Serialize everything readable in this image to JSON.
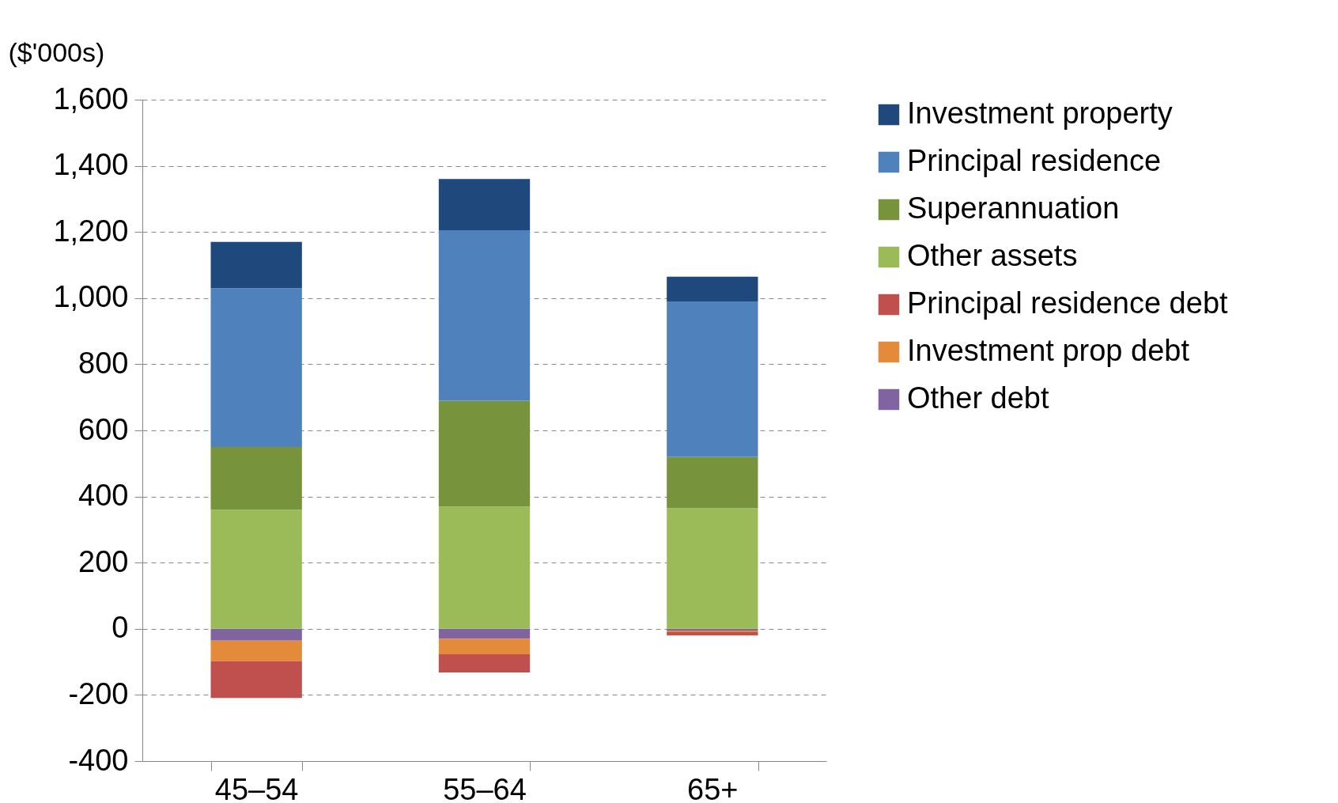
{
  "chart_data": {
    "type": "bar",
    "stacked": true,
    "ylabel": "($'000s)",
    "categories": [
      "45–54",
      "55–64",
      "65+"
    ],
    "series": [
      {
        "name": "Other debt",
        "color": "#8064a2",
        "values": [
          -36,
          -30,
          -5
        ]
      },
      {
        "name": "Investment prop debt",
        "color": "#e38b3b",
        "values": [
          -62,
          -47,
          -5
        ]
      },
      {
        "name": "Principal residence debt",
        "color": "#c0504d",
        "values": [
          -111,
          -55,
          -10
        ]
      },
      {
        "name": "Other assets",
        "color": "#9bbb59",
        "values": [
          360,
          370,
          365
        ]
      },
      {
        "name": "Superannuation",
        "color": "#77933c",
        "values": [
          190,
          320,
          155
        ]
      },
      {
        "name": "Principal residence",
        "color": "#4f81bd",
        "values": [
          480,
          515,
          470
        ]
      },
      {
        "name": "Investment property",
        "color": "#1f497d",
        "values": [
          140,
          155,
          75
        ]
      }
    ],
    "ylim": [
      -400,
      1600
    ],
    "yticks": [
      {
        "value": -400,
        "label": "-400"
      },
      {
        "value": -200,
        "label": "-200"
      },
      0,
      200,
      400,
      600,
      800,
      {
        "value": 1000,
        "label": "1,000"
      },
      {
        "value": 1200,
        "label": "1,200"
      },
      {
        "value": 1400,
        "label": "1,400"
      },
      {
        "value": 1600,
        "label": "1,600"
      }
    ],
    "grid": "y",
    "legend": "right"
  }
}
